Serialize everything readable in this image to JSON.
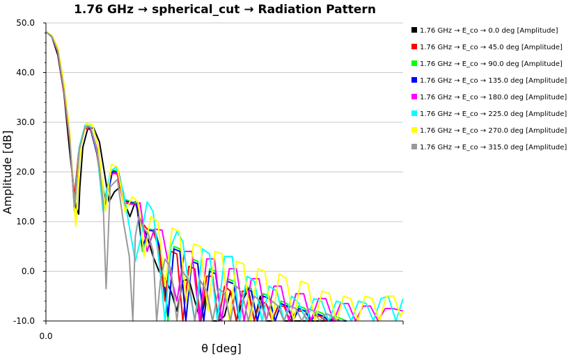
{
  "chart_data": {
    "type": "line",
    "title": "1.76 GHz → spherical_cut → Radiation Pattern",
    "xlabel": "θ [deg]",
    "ylabel": "Amplitude [dB]",
    "ylim": [
      -10,
      50
    ],
    "xlim": [
      0,
      60
    ],
    "x_ticks": [
      "0.0"
    ],
    "y_ticks": [
      "50.0",
      "40.0",
      "30.0",
      "20.0",
      "10.0",
      "0.0",
      "-10.0"
    ],
    "grid": "horizontal",
    "legend_position": "right",
    "series": [
      {
        "name": "1.76 GHz → E_co → 0.0 deg [Amplitude]",
        "color": "#000000",
        "x": [
          0,
          1,
          2,
          3,
          4,
          5,
          5.5,
          5.7,
          6.2,
          7,
          8,
          9,
          9.8,
          10.6,
          11.5,
          12.5,
          13.3,
          14.1,
          15,
          16,
          17,
          18,
          19,
          20,
          21,
          22,
          23,
          24,
          25,
          26,
          27,
          28,
          29,
          30,
          31,
          32,
          33,
          34,
          35,
          36,
          37,
          38,
          39,
          40,
          41,
          42,
          43,
          44,
          45,
          46,
          47
        ],
        "y": [
          48.2,
          47.2,
          43.5,
          36,
          24,
          13,
          11.5,
          17,
          25,
          28.6,
          28.9,
          26,
          20,
          14,
          16,
          17,
          13.5,
          11,
          14,
          10,
          7,
          3,
          0,
          -1.5,
          -4,
          -8,
          -2,
          -1.5,
          -6,
          -10,
          -4,
          -10,
          -10,
          -9,
          -4,
          -10,
          -6,
          -3.5,
          -10,
          -5,
          -10,
          -10,
          -7,
          -10,
          -10,
          -10,
          -10,
          -10,
          -10,
          -10,
          -10
        ]
      },
      {
        "name": "1.76 GHz → E_co → 45.0 deg [Amplitude]",
        "color": "#ff0000",
        "x": [
          0,
          1,
          2,
          3,
          4,
          4.8,
          5.5,
          6.5,
          7.5,
          8.5,
          9.8,
          11,
          12,
          13,
          14,
          15,
          16,
          17,
          18,
          19,
          20,
          21,
          22,
          23,
          24,
          25,
          26,
          27,
          28,
          29,
          30,
          31,
          32,
          33,
          34,
          35,
          36,
          37,
          38,
          39,
          40,
          41,
          42,
          43,
          44,
          45,
          46,
          47,
          48,
          49,
          50
        ],
        "y": [
          48.2,
          47.3,
          44,
          36,
          26,
          15,
          24,
          28.8,
          28.5,
          24,
          13,
          20,
          19.5,
          14,
          13.5,
          13.7,
          10,
          8.5,
          8.2,
          4.5,
          -6,
          4,
          3.5,
          -10,
          1,
          0.5,
          -10,
          -1,
          -1,
          -10,
          -3,
          -4,
          -10,
          -4,
          -4,
          -10,
          -6,
          -6.5,
          -10,
          -7,
          -7,
          -10,
          -8,
          -8,
          -10,
          -9,
          -9,
          -10,
          -10,
          -10,
          -10
        ]
      },
      {
        "name": "1.76 GHz → E_co → 90.0 deg [Amplitude]",
        "color": "#00ff00",
        "x": [
          0,
          1,
          2,
          3,
          4,
          4.8,
          5.6,
          6.6,
          7.5,
          8.6,
          10,
          11.2,
          12.2,
          13.2,
          14.3,
          15.2,
          16.2,
          17.3,
          18.3,
          19.3,
          20.5,
          21.5,
          22.5,
          23.5,
          24.5,
          25.5,
          26.5,
          27.5,
          28.5,
          29.5,
          30.5,
          31.5,
          32.5,
          33.5,
          34.5,
          35.5,
          36.5,
          37.5,
          38.5,
          39.5,
          40.5,
          41.5,
          42.5,
          43.5,
          44.5,
          45.5,
          46.5,
          47.5,
          48.5,
          49.5,
          50.5
        ],
        "y": [
          48.3,
          47.4,
          44.5,
          37,
          27,
          12,
          25,
          29.5,
          29,
          24,
          14,
          20.5,
          20,
          14.5,
          14,
          13.8,
          4,
          8.5,
          8.3,
          4,
          -10,
          5,
          4.5,
          -10,
          2.5,
          2,
          -10,
          0.5,
          0,
          -10,
          -1.5,
          -2,
          -10,
          -3,
          -3.5,
          -10,
          -4.5,
          -5,
          -10,
          -6,
          -6.5,
          -10,
          -7,
          -7.5,
          -10,
          -8,
          -8.5,
          -10,
          -9,
          -9.5,
          -10
        ]
      },
      {
        "name": "1.76 GHz → E_co → 135.0 deg [Amplitude]",
        "color": "#0000ff",
        "x": [
          0,
          1,
          2,
          3,
          4,
          4.8,
          5.6,
          6.6,
          7.5,
          8.6,
          10,
          11.2,
          12.2,
          13.2,
          14.3,
          15.2,
          16.2,
          17.3,
          18.3,
          19.3,
          20.5,
          21.5,
          22.5,
          23.5,
          24.5,
          25.5,
          26.5,
          27.5,
          28.5,
          29.5,
          30.5,
          31.5,
          32.5,
          33.5,
          34.5,
          35.5,
          36.5,
          37.5,
          38.5,
          39.5,
          40.5,
          41.5,
          42.5,
          43.5,
          44.5,
          45.5,
          46.5,
          47.5,
          48.5,
          49.5,
          50.5
        ],
        "y": [
          48.2,
          47.3,
          44.2,
          36.5,
          26.5,
          13,
          24.5,
          29.2,
          28.8,
          23.5,
          13.5,
          20.2,
          19.8,
          14.2,
          13.8,
          13.6,
          5,
          8.3,
          8,
          4,
          -9,
          4.5,
          4,
          -10,
          2,
          1.5,
          -10,
          0,
          -0.5,
          -10,
          -2,
          -2.5,
          -10,
          -3.5,
          -4,
          -10,
          -5,
          -5.5,
          -10,
          -6.5,
          -7,
          -10,
          -7.5,
          -8,
          -10,
          -8.5,
          -9,
          -10,
          -9.5,
          -10,
          -10
        ]
      },
      {
        "name": "1.76 GHz → E_co → 180.0 deg [Amplitude]",
        "color": "#ff00ff",
        "x": [
          0,
          1,
          2,
          3,
          4,
          4.8,
          5.6,
          6.6,
          7.5,
          8.6,
          9.6,
          10.8,
          12,
          13.2,
          14.5,
          15.8,
          17,
          18.2,
          19.5,
          20.8,
          22,
          23.3,
          24.5,
          25.8,
          27,
          28.3,
          29.5,
          30.8,
          32,
          33.3,
          34.5,
          35.8,
          37,
          38.3,
          39.5,
          40.8,
          42,
          43.3,
          44.5,
          45.8,
          47,
          48.3,
          49.5,
          50.8,
          52,
          53.3,
          54.5,
          55.8,
          57,
          58.3,
          60
        ],
        "y": [
          48.2,
          47.3,
          44.4,
          36.8,
          26.8,
          12.5,
          25,
          29.2,
          29,
          24.5,
          13,
          19.5,
          19.8,
          14,
          13.5,
          13.8,
          4,
          8.5,
          8.3,
          0,
          -6,
          4,
          4,
          -10,
          2.5,
          2.5,
          -10,
          0.5,
          0.5,
          -10,
          -1.5,
          -1.5,
          -10,
          -3,
          -3,
          -10,
          -4.5,
          -4.5,
          -10,
          -5.5,
          -5.5,
          -10,
          -6.5,
          -6.5,
          -10,
          -7,
          -7,
          -10,
          -7.5,
          -7.5,
          -8
        ]
      },
      {
        "name": "1.76 GHz → E_co → 225.0 deg [Amplitude]",
        "color": "#00ffff",
        "x": [
          0,
          1,
          2,
          3,
          4,
          4.8,
          5.6,
          6.6,
          7.5,
          8.6,
          9.6,
          10.8,
          11.8,
          13,
          14,
          15,
          16,
          17,
          18,
          19,
          20,
          21,
          22,
          23,
          24,
          25,
          26.3,
          27.5,
          28.8,
          30,
          31.3,
          32.5,
          33.8,
          35,
          36.3,
          37.5,
          38.8,
          40,
          41.3,
          42.5,
          43.8,
          45,
          46.3,
          47.5,
          48.8,
          50,
          51.3,
          52.5,
          53.8,
          55,
          56.3,
          57.5,
          58.8,
          60
        ],
        "y": [
          48.2,
          47.3,
          44.5,
          37,
          27.5,
          13,
          25,
          29.5,
          29.2,
          24,
          12,
          20,
          21,
          16,
          9,
          2,
          7,
          14,
          12,
          2,
          -10,
          5,
          8,
          6,
          -3,
          -10,
          4.5,
          3.5,
          -10,
          3,
          3,
          -10,
          -1,
          -2,
          -10,
          -3,
          -4,
          -10,
          -5,
          -6.5,
          -10,
          -5.5,
          -6,
          -10,
          -6,
          -6.5,
          -10,
          -6,
          -6.5,
          -10,
          -5.5,
          -5,
          -10,
          -5.5
        ]
      },
      {
        "name": "1.76 GHz → E_co → 270.0 deg [Amplitude]",
        "color": "#ffff00",
        "x": [
          0,
          1,
          2,
          3,
          4,
          5,
          5.8,
          6.8,
          7.8,
          8.8,
          10,
          11,
          12,
          13.3,
          14.5,
          15.5,
          16.5,
          17.6,
          18.8,
          20,
          21.2,
          22.4,
          23.6,
          24.8,
          26,
          27.2,
          28.4,
          29.6,
          30.8,
          32,
          33.2,
          34.4,
          35.6,
          36.8,
          38,
          39.2,
          40.4,
          41.6,
          42.8,
          44,
          45.2,
          46.4,
          47.6,
          48.8,
          50,
          51.2,
          52.4,
          53.6,
          54.8,
          56,
          57.2,
          58.4,
          59.6,
          60
        ],
        "y": [
          48.3,
          47.5,
          45,
          38,
          28,
          9,
          25,
          29.8,
          29.5,
          25,
          12,
          21.5,
          21,
          12,
          15,
          14,
          3,
          11,
          10,
          -3,
          8.7,
          8,
          -6,
          5.5,
          5,
          -8,
          4,
          3.5,
          -10,
          2,
          1.5,
          -10,
          0.5,
          0,
          -10,
          -0.5,
          -1.5,
          -10,
          -2,
          -2.5,
          -10,
          -4,
          -4.5,
          -10,
          -5,
          -5.5,
          -10,
          -5,
          -5.5,
          -10,
          -5,
          -5,
          -9,
          -8
        ]
      },
      {
        "name": "1.76 GHz → E_co → 315.0 deg [Amplitude]",
        "color": "#999999",
        "x": [
          0,
          1,
          2,
          3,
          4,
          4.8,
          5.6,
          6.6,
          7.5,
          8.6,
          9.6,
          10.1,
          10.8,
          12,
          13,
          14,
          14.6,
          15,
          15.6,
          16.2,
          17.2,
          18,
          18.6,
          19.2,
          20,
          21,
          22,
          23,
          24,
          25,
          26,
          27,
          28,
          29,
          30,
          31,
          32,
          33,
          34,
          35,
          36,
          37,
          38,
          39,
          40,
          41,
          42,
          43,
          44,
          45,
          46,
          47,
          48,
          49,
          50
        ],
        "y": [
          48.2,
          47.3,
          44.3,
          36.6,
          26.6,
          13,
          24.5,
          29.2,
          29,
          24,
          14,
          -3.5,
          17,
          18.5,
          10,
          3,
          -10,
          7,
          11,
          9,
          7.5,
          4,
          -10,
          -2,
          2.5,
          0.5,
          -10,
          0,
          -2,
          -10,
          -2,
          -4,
          -10,
          -3.5,
          -4.5,
          -10,
          -3,
          -4.5,
          -10,
          -5,
          -6,
          -10,
          -6,
          -7,
          -10,
          -7,
          -7.5,
          -10,
          -7.5,
          -8,
          -10,
          -8.5,
          -9,
          -10,
          -10
        ]
      }
    ]
  }
}
